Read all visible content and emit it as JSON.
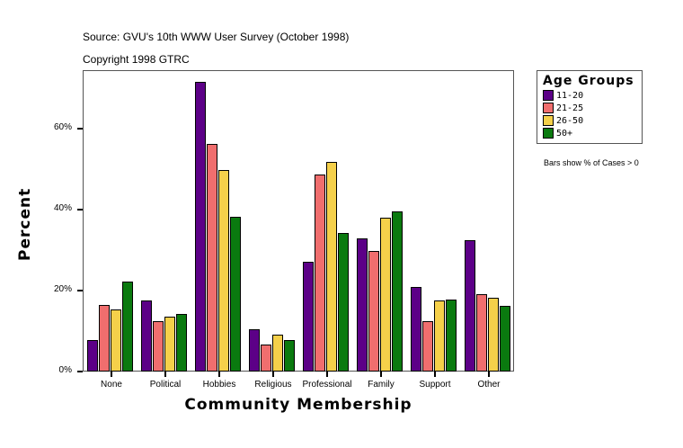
{
  "header": {
    "source": "Source: GVU's 10th WWW User Survey (October 1998)",
    "copyright": "Copyright 1998 GTRC"
  },
  "legend": {
    "title": "Age Groups",
    "items": [
      {
        "label": "11-20",
        "color": "#5c0087"
      },
      {
        "label": "21-25",
        "color": "#f06e6e"
      },
      {
        "label": "26-50",
        "color": "#f5d04a"
      },
      {
        "label": "50+",
        "color": "#0a7a0f"
      }
    ]
  },
  "note": "Bars show % of Cases > 0",
  "axes": {
    "ylabel": "Percent",
    "xlabel": "Community Membership",
    "yticks": [
      "0%",
      "20%",
      "40%",
      "60%"
    ]
  },
  "chart_data": {
    "type": "bar",
    "title": "Source: GVU's 10th WWW User Survey (October 1998)",
    "subtitle": "Copyright 1998 GTRC",
    "xlabel": "Community Membership",
    "ylabel": "Percent",
    "ylim": [
      0,
      74
    ],
    "yticks": [
      0,
      20,
      40,
      60
    ],
    "grid": false,
    "legend_position": "right",
    "legend_title": "Age Groups",
    "annotation": "Bars show % of Cases > 0",
    "categories": [
      "None",
      "Political",
      "Hobbies",
      "Religious",
      "Professional",
      "Family",
      "Support",
      "Other"
    ],
    "series": [
      {
        "name": "11-20",
        "color": "#5c0087",
        "values": [
          7.8,
          17.6,
          71.6,
          10.4,
          27.1,
          32.9,
          20.9,
          32.4
        ]
      },
      {
        "name": "21-25",
        "color": "#f06e6e",
        "values": [
          16.4,
          12.4,
          56.2,
          6.7,
          48.7,
          29.8,
          12.4,
          19.1
        ]
      },
      {
        "name": "26-50",
        "color": "#f5d04a",
        "values": [
          15.3,
          13.6,
          49.8,
          9.1,
          51.8,
          38.0,
          17.6,
          18.2
        ]
      },
      {
        "name": "50+",
        "color": "#0a7a0f",
        "values": [
          22.2,
          14.2,
          38.2,
          7.8,
          34.2,
          39.6,
          17.8,
          16.2
        ]
      }
    ]
  }
}
